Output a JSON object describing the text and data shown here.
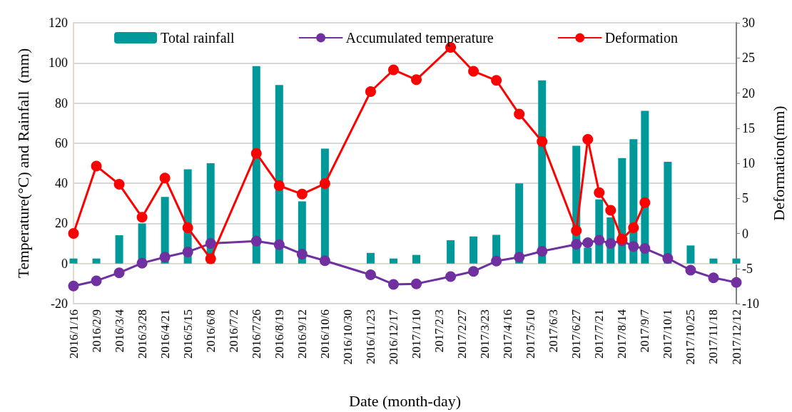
{
  "chart_data": {
    "type": "bar",
    "xlabel": "Date (month-day)",
    "ylabel": "Temperature(°C) and Rainfall  (mm)",
    "y2label": "Deformation(mm)",
    "x": [
      "2016-01-16",
      "2016-02-09",
      "2016-03-04",
      "2016-03-28",
      "2016-04-21",
      "2016-05-15",
      "2016-06-08",
      "2016-07-26",
      "2016-08-19",
      "2016-09-12",
      "2016-10-06",
      "2016-11-23",
      "2016-12-17",
      "2017-01-10",
      "2017-02-15",
      "2017-03-11",
      "2017-04-04",
      "2017-04-28",
      "2017-05-22",
      "2017-06-27",
      "2017-07-09",
      "2017-07-21",
      "2017-08-02",
      "2017-08-14",
      "2017-08-26",
      "2017-09-07",
      "2017-10-01",
      "2017-10-25",
      "2017-11-18",
      "2017-12-12"
    ],
    "series": [
      {
        "name": "Total rainfall",
        "color": "#009999",
        "values": [
          2.5,
          2.5,
          14.1,
          20,
          33.2,
          47.0,
          50.0,
          98.4,
          89.0,
          31,
          57.3,
          5.3,
          2.5,
          4.3,
          11.6,
          13.5,
          14.3,
          40.0,
          91.3,
          58.7,
          7.9,
          32,
          23,
          52.6,
          62.0,
          76.1,
          50.7,
          9.0,
          2.5,
          2.5
        ]
      },
      {
        "name": "Accumulated temperature",
        "type": "line",
        "color": "#7030a0",
        "values": [
          -11.2,
          -8.6,
          -4.6,
          0.2,
          3.2,
          5.8,
          10.0,
          11.2,
          9.4,
          4.7,
          1.4,
          -5.6,
          -10.4,
          -10.1,
          -6.5,
          -3.9,
          1.2,
          3.2,
          6.1,
          9.6,
          10.4,
          11.6,
          10.0,
          11.4,
          8.5,
          7.5,
          2.6,
          -3.3,
          -7.1,
          -9.4
        ]
      },
      {
        "name": "Deformation",
        "type": "line",
        "axis": "y2",
        "color": "#ff0000",
        "values": [
          0.0,
          9.6,
          7.0,
          2.3,
          7.9,
          0.8,
          -3.6,
          11.4,
          6.8,
          5.6,
          7.1,
          20.2,
          23.3,
          21.9,
          26.5,
          23.1,
          21.8,
          17.0,
          13.1,
          0.4,
          13.4,
          5.8,
          3.3,
          -0.8,
          0.8,
          4.4,
          null,
          null,
          null,
          null
        ]
      }
    ],
    "xlim": [
      "2016-01-16",
      "2017-12-12"
    ],
    "xticks": [
      {
        "value": "2016-01-16",
        "label": "2016/1/16"
      },
      {
        "value": "2016-02-09",
        "label": "2016/2/9"
      },
      {
        "value": "2016-03-04",
        "label": "2016/3/4"
      },
      {
        "value": "2016-03-28",
        "label": "2016/3/28"
      },
      {
        "value": "2016-04-21",
        "label": "2016/4/21"
      },
      {
        "value": "2016-05-15",
        "label": "2016/5/15"
      },
      {
        "value": "2016-06-08",
        "label": "2016/6/8"
      },
      {
        "value": "2016-07-02",
        "label": "2016/7/2"
      },
      {
        "value": "2016-07-26",
        "label": "2016/7/26"
      },
      {
        "value": "2016-08-19",
        "label": "2016/8/19"
      },
      {
        "value": "2016-09-12",
        "label": "2016/9/12"
      },
      {
        "value": "2016-10-06",
        "label": "2016/10/6"
      },
      {
        "value": "2016-10-30",
        "label": "2016/10/30"
      },
      {
        "value": "2016-11-23",
        "label": "2016/11/23"
      },
      {
        "value": "2016-12-17",
        "label": "2016/12/17"
      },
      {
        "value": "2017-01-10",
        "label": "2017/1/10"
      },
      {
        "value": "2017-02-03",
        "label": "2017/2/3"
      },
      {
        "value": "2017-02-27",
        "label": "2017/2/27"
      },
      {
        "value": "2017-03-23",
        "label": "2017/3/23"
      },
      {
        "value": "2017-04-16",
        "label": "2017/4/16"
      },
      {
        "value": "2017-05-10",
        "label": "2017/5/10"
      },
      {
        "value": "2017-06-03",
        "label": "2017/6/3"
      },
      {
        "value": "2017-06-27",
        "label": "2017/6/27"
      },
      {
        "value": "2017-07-21",
        "label": "2017/7/21"
      },
      {
        "value": "2017-08-14",
        "label": "2017/8/14"
      },
      {
        "value": "2017-09-07",
        "label": "2017/9/7"
      },
      {
        "value": "2017-10-01",
        "label": "2017/10/1"
      },
      {
        "value": "2017-10-25",
        "label": "2017/10/25"
      },
      {
        "value": "2017-11-18",
        "label": "2017/11/18"
      },
      {
        "value": "2017-12-12",
        "label": "2017/12/12"
      }
    ],
    "ylim": [
      -20,
      120
    ],
    "yticks": [
      -20,
      0,
      20,
      40,
      60,
      80,
      100,
      120
    ],
    "y2lim": [
      -10,
      30
    ],
    "y2ticks": [
      -10,
      -5,
      0,
      5,
      10,
      15,
      20,
      25,
      30
    ],
    "grid": "y",
    "legend": "top",
    "marker": "circle",
    "line_style": "solid"
  }
}
